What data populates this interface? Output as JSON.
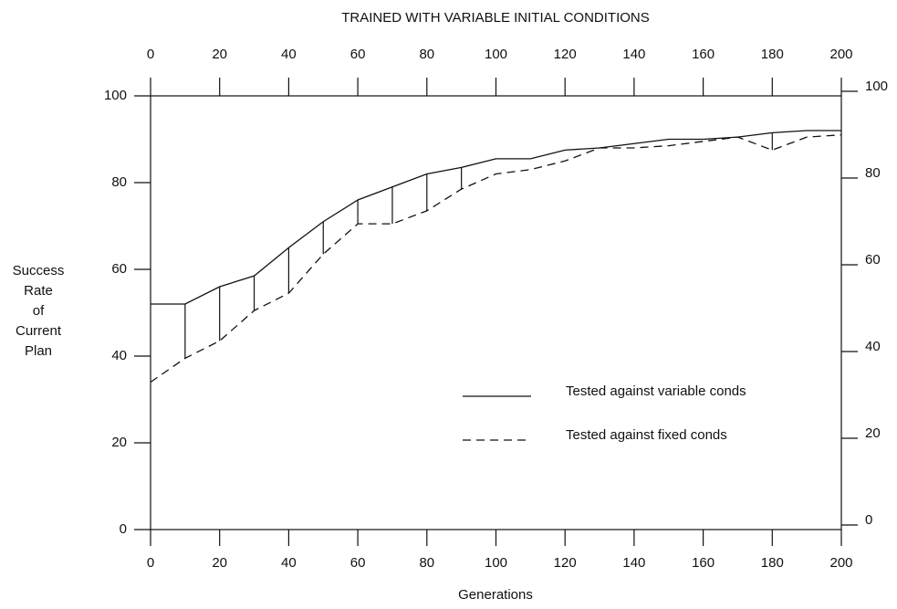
{
  "chart_data": {
    "type": "line",
    "title": "TRAINED WITH VARIABLE INITIAL CONDITIONS",
    "x_label": "Generations",
    "y_label": [
      "Success",
      "Rate",
      "of",
      "Current",
      "Plan"
    ],
    "x": [
      0,
      10,
      20,
      30,
      40,
      50,
      60,
      70,
      80,
      90,
      100,
      110,
      120,
      130,
      140,
      150,
      160,
      170,
      180,
      190,
      200
    ],
    "series": [
      {
        "name": "Tested against variable conds",
        "color": "#111111",
        "dash": false,
        "values": [
          52,
          52,
          56,
          58.5,
          65,
          71,
          76,
          79,
          82,
          83.5,
          85.5,
          85.5,
          87.5,
          88,
          89,
          90,
          90,
          90.5,
          91.5,
          92,
          92
        ]
      },
      {
        "name": "Tested against fixed conds",
        "color": "#111111",
        "dash": true,
        "values": [
          34,
          39.5,
          43.5,
          50.5,
          54.5,
          63.5,
          70.5,
          70.5,
          73.5,
          78.5,
          82,
          83,
          85,
          88,
          88,
          88.5,
          89.5,
          90.5,
          87.5,
          90.5,
          91
        ]
      }
    ],
    "xlim": [
      0,
      200
    ],
    "xticks": [
      0,
      20,
      40,
      60,
      80,
      100,
      120,
      140,
      160,
      180,
      200
    ],
    "ylim": [
      0,
      100
    ],
    "yticks": [
      0,
      20,
      40,
      60,
      80,
      100
    ]
  }
}
